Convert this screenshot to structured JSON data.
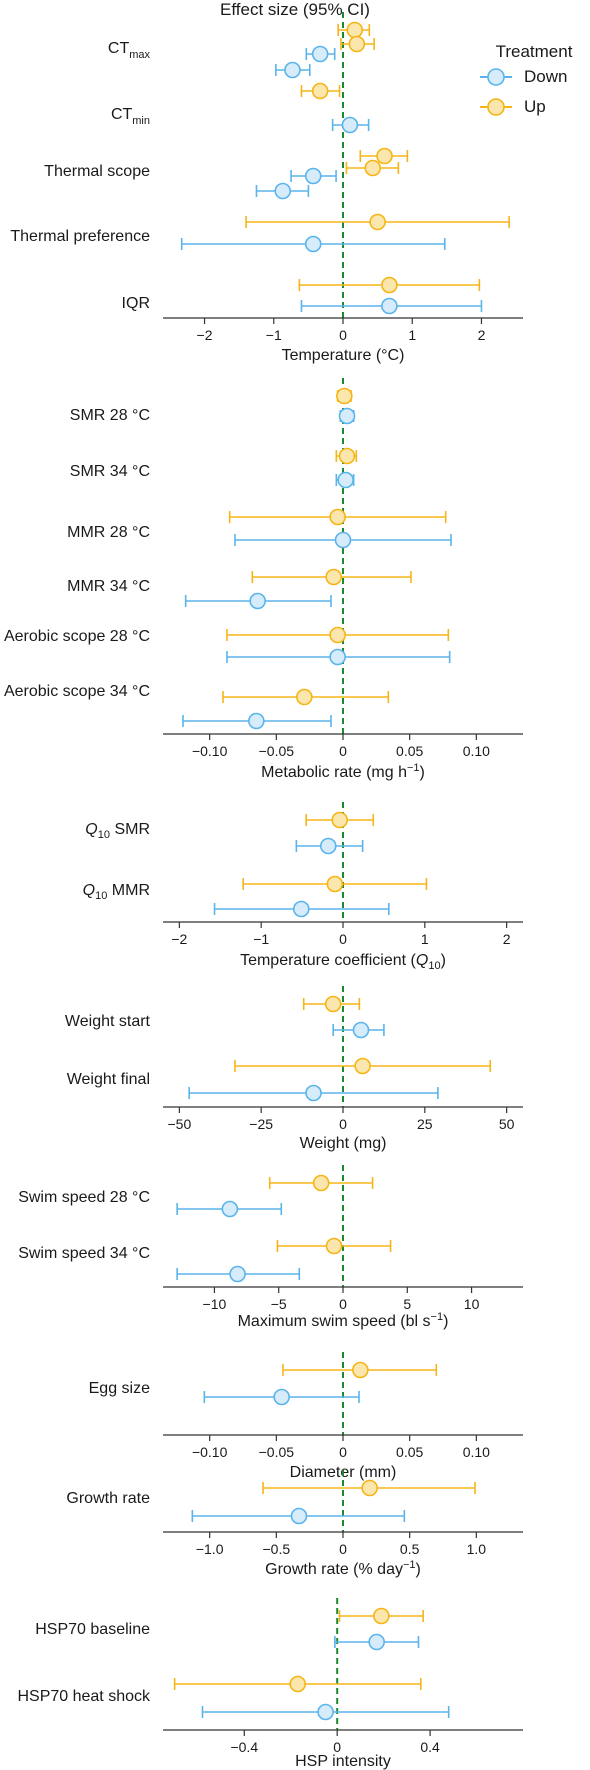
{
  "title": "Effect size (95% CI)",
  "colors": {
    "Down": "#5ab4ec",
    "Up": "#f5b516",
    "zero_line": "#1a8a2e"
  },
  "legend": {
    "title": "Treatment",
    "position": "top-right",
    "entries": [
      "Down",
      "Up"
    ]
  },
  "chart_data": [
    {
      "type": "forest",
      "xlabel": "Temperature (°C)",
      "xlim": [
        -2.6,
        2.6
      ],
      "ticks": [
        -2,
        -1,
        0,
        1,
        2
      ],
      "tick_labels": [
        "−2",
        "−1",
        "0",
        "1",
        "2"
      ],
      "groups": [
        {
          "label": "CT",
          "sub": "max",
          "estimates": [
            {
              "series": "Up",
              "est": 0.17,
              "lo": -0.07,
              "hi": 0.38
            },
            {
              "series": "Up",
              "est": 0.2,
              "lo": -0.03,
              "hi": 0.45
            },
            {
              "series": "Down",
              "est": -0.33,
              "lo": -0.53,
              "hi": -0.12
            },
            {
              "series": "Down",
              "est": -0.73,
              "lo": -0.97,
              "hi": -0.48
            }
          ]
        },
        {
          "label": "CT",
          "sub": "min",
          "estimates": [
            {
              "series": "Up",
              "est": -0.33,
              "lo": -0.6,
              "hi": -0.05
            },
            {
              "series": "Down",
              "est": 0.1,
              "lo": -0.15,
              "hi": 0.37
            }
          ]
        },
        {
          "label": "Thermal scope",
          "estimates": [
            {
              "series": "Up",
              "est": 0.6,
              "lo": 0.25,
              "hi": 0.93
            },
            {
              "series": "Up",
              "est": 0.43,
              "lo": 0.05,
              "hi": 0.8
            },
            {
              "series": "Down",
              "est": -0.43,
              "lo": -0.75,
              "hi": -0.1
            },
            {
              "series": "Down",
              "est": -0.87,
              "lo": -1.25,
              "hi": -0.5
            }
          ]
        },
        {
          "label": "Thermal preference",
          "estimates": [
            {
              "series": "Up",
              "est": 0.5,
              "lo": -1.4,
              "hi": 2.4
            },
            {
              "series": "Down",
              "est": -0.43,
              "lo": -2.33,
              "hi": 1.47
            }
          ]
        },
        {
          "label": "IQR",
          "estimates": [
            {
              "series": "Up",
              "est": 0.67,
              "lo": -0.63,
              "hi": 1.97
            },
            {
              "series": "Down",
              "est": 0.67,
              "lo": -0.6,
              "hi": 2.0
            }
          ]
        }
      ]
    },
    {
      "type": "forest",
      "xlabel": "Metabolic rate (mg h",
      "xlabel_sup": "−1",
      "xlabel_tail": ")",
      "xlim": [
        -0.135,
        0.135
      ],
      "ticks": [
        -0.1,
        -0.05,
        0,
        0.05,
        0.1
      ],
      "tick_labels": [
        "−0.10",
        "−0.05",
        "0",
        "0.05",
        "0.10"
      ],
      "groups": [
        {
          "label": "SMR 28 °C",
          "estimates": [
            {
              "series": "Up",
              "est": 0.001,
              "lo": -0.004,
              "hi": 0.006
            },
            {
              "series": "Down",
              "est": 0.003,
              "lo": -0.002,
              "hi": 0.008
            }
          ]
        },
        {
          "label": "SMR 34 °C",
          "estimates": [
            {
              "series": "Up",
              "est": 0.003,
              "lo": -0.005,
              "hi": 0.01
            },
            {
              "series": "Down",
              "est": 0.002,
              "lo": -0.005,
              "hi": 0.008
            }
          ]
        },
        {
          "label": "MMR 28 °C",
          "estimates": [
            {
              "series": "Up",
              "est": -0.004,
              "lo": -0.085,
              "hi": 0.077
            },
            {
              "series": "Down",
              "est": 0.0,
              "lo": -0.081,
              "hi": 0.081
            }
          ]
        },
        {
          "label": "MMR 34 °C",
          "estimates": [
            {
              "series": "Up",
              "est": -0.007,
              "lo": -0.068,
              "hi": 0.051
            },
            {
              "series": "Down",
              "est": -0.064,
              "lo": -0.118,
              "hi": -0.009
            }
          ]
        },
        {
          "label": "Aerobic scope 28 °C",
          "estimates": [
            {
              "series": "Up",
              "est": -0.004,
              "lo": -0.087,
              "hi": 0.079
            },
            {
              "series": "Down",
              "est": -0.004,
              "lo": -0.087,
              "hi": 0.08
            }
          ]
        },
        {
          "label": "Aerobic scope 34 °C",
          "estimates": [
            {
              "series": "Up",
              "est": -0.029,
              "lo": -0.09,
              "hi": 0.034
            },
            {
              "series": "Down",
              "est": -0.065,
              "lo": -0.12,
              "hi": -0.009
            }
          ]
        }
      ]
    },
    {
      "type": "forest",
      "xlabel": "Temperature coefficient (",
      "xlabel_q": "Q",
      "xlabel_qsub": "10",
      "xlabel_tail": ")",
      "xlim": [
        -2.2,
        2.2
      ],
      "ticks": [
        -2,
        -1,
        0,
        1,
        2
      ],
      "tick_labels": [
        "−2",
        "−1",
        "0",
        "1",
        "2"
      ],
      "groups": [
        {
          "label": "SMR",
          "q": "Q",
          "qsub": "10",
          "estimates": [
            {
              "series": "Up",
              "est": -0.04,
              "lo": -0.45,
              "hi": 0.37
            },
            {
              "series": "Down",
              "est": -0.18,
              "lo": -0.57,
              "hi": 0.24
            }
          ]
        },
        {
          "label": "MMR",
          "q": "Q",
          "qsub": "10",
          "estimates": [
            {
              "series": "Up",
              "est": -0.1,
              "lo": -1.22,
              "hi": 1.02
            },
            {
              "series": "Down",
              "est": -0.51,
              "lo": -1.57,
              "hi": 0.56
            }
          ]
        }
      ]
    },
    {
      "type": "forest",
      "xlabel": "Weight (mg)",
      "xlim": [
        -55,
        55
      ],
      "ticks": [
        -50,
        -25,
        0,
        25,
        50
      ],
      "tick_labels": [
        "−50",
        "−25",
        "0",
        "25",
        "50"
      ],
      "groups": [
        {
          "label": "Weight start",
          "estimates": [
            {
              "series": "Up",
              "est": -3,
              "lo": -12,
              "hi": 5
            },
            {
              "series": "Down",
              "est": 5.5,
              "lo": -3,
              "hi": 12.5
            }
          ]
        },
        {
          "label": "Weight final",
          "estimates": [
            {
              "series": "Up",
              "est": 6,
              "lo": -33,
              "hi": 45
            },
            {
              "series": "Down",
              "est": -9,
              "lo": -47,
              "hi": 29
            }
          ]
        }
      ]
    },
    {
      "type": "forest",
      "xlabel": "Maximum swim speed (bl s",
      "xlabel_sup": "−1",
      "xlabel_tail": ")",
      "xlim": [
        -14,
        14
      ],
      "ticks": [
        -10,
        -5,
        0,
        5,
        10
      ],
      "tick_labels": [
        "−10",
        "−5",
        "0",
        "5",
        "10"
      ],
      "groups": [
        {
          "label": "Swim speed  28 °C",
          "estimates": [
            {
              "series": "Up",
              "est": -1.7,
              "lo": -5.7,
              "hi": 2.3
            },
            {
              "series": "Down",
              "est": -8.8,
              "lo": -12.9,
              "hi": -4.8
            }
          ]
        },
        {
          "label": "Swim speed  34 °C",
          "estimates": [
            {
              "series": "Up",
              "est": -0.7,
              "lo": -5.1,
              "hi": 3.7
            },
            {
              "series": "Down",
              "est": -8.2,
              "lo": -12.9,
              "hi": -3.4
            }
          ]
        }
      ]
    },
    {
      "type": "forest",
      "xlabel": "Diameter (mm)",
      "xlim": [
        -0.135,
        0.135
      ],
      "ticks": [
        -0.1,
        -0.05,
        0,
        0.05,
        0.1
      ],
      "tick_labels": [
        "−0.10",
        "−0.05",
        "0",
        "0.05",
        "0.10"
      ],
      "groups": [
        {
          "label": "Egg size",
          "estimates": [
            {
              "series": "Up",
              "est": 0.013,
              "lo": -0.045,
              "hi": 0.07
            },
            {
              "series": "Down",
              "est": -0.046,
              "lo": -0.104,
              "hi": 0.012
            }
          ]
        }
      ]
    },
    {
      "type": "forest",
      "xlabel": "Growth rate (% day",
      "xlabel_sup": "−1",
      "xlabel_tail": ")",
      "xlim": [
        -1.35,
        1.35
      ],
      "ticks": [
        -1,
        -0.5,
        0,
        0.5,
        1
      ],
      "tick_labels": [
        "−1.0",
        "−0.5",
        "0",
        "0.5",
        "1.0"
      ],
      "groups": [
        {
          "label": "Growth rate",
          "estimates": [
            {
              "series": "Up",
              "est": 0.2,
              "lo": -0.6,
              "hi": 0.99
            },
            {
              "series": "Down",
              "est": -0.33,
              "lo": -1.13,
              "hi": 0.46
            }
          ]
        }
      ]
    },
    {
      "type": "forest",
      "xlabel": "HSP intensity",
      "xlim": [
        -0.75,
        0.8
      ],
      "ticks": [
        -0.4,
        0,
        0.4
      ],
      "tick_labels": [
        "−0.4",
        "0",
        "0.4"
      ],
      "groups": [
        {
          "label": "HSP70 baseline",
          "estimates": [
            {
              "series": "Up",
              "est": 0.19,
              "lo": 0.01,
              "hi": 0.37
            },
            {
              "series": "Down",
              "est": 0.17,
              "lo": -0.01,
              "hi": 0.35
            }
          ]
        },
        {
          "label": "HSP70 heat shock",
          "estimates": [
            {
              "series": "Up",
              "est": -0.17,
              "lo": -0.7,
              "hi": 0.36
            },
            {
              "series": "Down",
              "est": -0.05,
              "lo": -0.58,
              "hi": 0.48
            }
          ]
        }
      ]
    }
  ]
}
